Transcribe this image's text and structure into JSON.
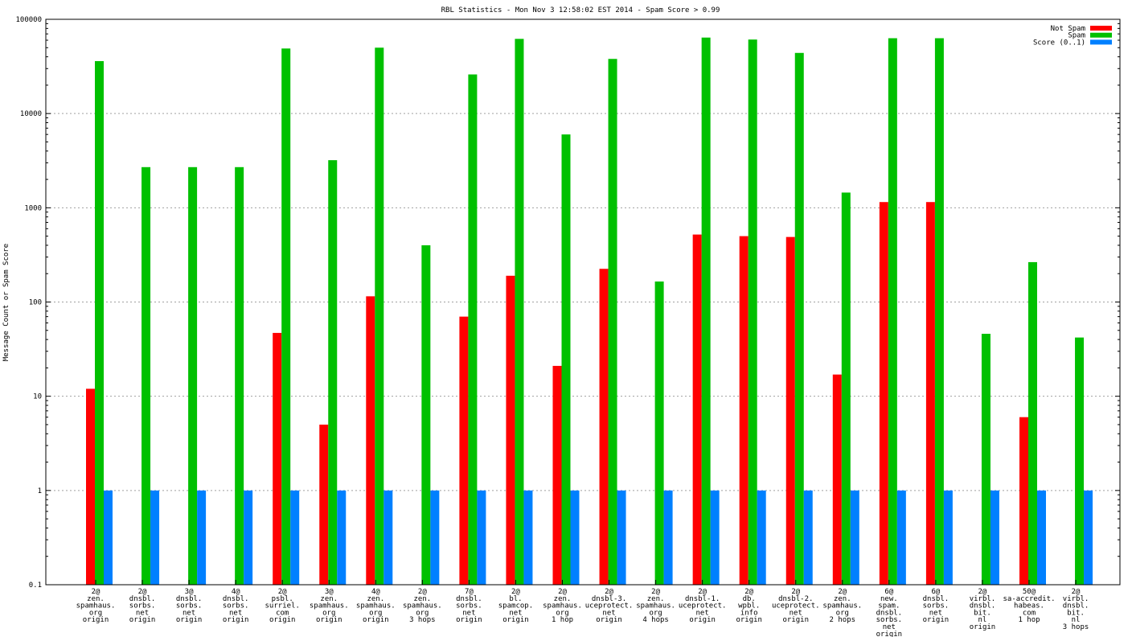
{
  "chart_data": {
    "type": "bar",
    "title": "RBL Statistics - Mon Nov  3 12:58:02 EST 2014 - Spam Score > 0.99",
    "ylabel": "Message Count or Spam Score",
    "xlabel": "",
    "yscale": "log",
    "ylim": [
      0.1,
      100000
    ],
    "yticks": [
      {
        "value": 0.1,
        "label": "0.1"
      },
      {
        "value": 1,
        "label": "1"
      },
      {
        "value": 10,
        "label": "10"
      },
      {
        "value": 100,
        "label": "100"
      },
      {
        "value": 1000,
        "label": "1000"
      },
      {
        "value": 10000,
        "label": "10000"
      },
      {
        "value": 100000,
        "label": "100000"
      }
    ],
    "grid": true,
    "legend_position": "top-right",
    "categories": [
      [
        "2@",
        "zen.",
        "spamhaus.",
        "org",
        "origin"
      ],
      [
        "2@",
        "dnsbl.",
        "sorbs.",
        "net",
        "origin"
      ],
      [
        "3@",
        "dnsbl.",
        "sorbs.",
        "net",
        "origin"
      ],
      [
        "4@",
        "dnsbl.",
        "sorbs.",
        "net",
        "origin"
      ],
      [
        "2@",
        "psbl.",
        "surriel.",
        "com",
        "origin"
      ],
      [
        "3@",
        "zen.",
        "spamhaus.",
        "org",
        "origin"
      ],
      [
        "4@",
        "zen.",
        "spamhaus.",
        "org",
        "origin"
      ],
      [
        "2@",
        "zen.",
        "spamhaus.",
        "org",
        "3 hops"
      ],
      [
        "7@",
        "dnsbl.",
        "sorbs.",
        "net",
        "origin"
      ],
      [
        "2@",
        "bl.",
        "spamcop.",
        "net",
        "origin"
      ],
      [
        "2@",
        "zen.",
        "spamhaus.",
        "org",
        "1 hop"
      ],
      [
        "2@",
        "dnsbl-3.",
        "uceprotect.",
        "net",
        "origin"
      ],
      [
        "2@",
        "zen.",
        "spamhaus.",
        "org",
        "4 hops"
      ],
      [
        "2@",
        "dnsbl-1.",
        "uceprotect.",
        "net",
        "origin"
      ],
      [
        "2@",
        "db.",
        "wpbl.",
        "info",
        "origin"
      ],
      [
        "2@",
        "dnsbl-2.",
        "uceprotect.",
        "net",
        "origin"
      ],
      [
        "2@",
        "zen.",
        "spamhaus.",
        "org",
        "2 hops"
      ],
      [
        "6@",
        "new.",
        "spam.",
        "dnsbl.",
        "sorbs.",
        "net",
        "origin"
      ],
      [
        "6@",
        "dnsbl.",
        "sorbs.",
        "net",
        "origin"
      ],
      [
        "2@",
        "virbl.",
        "dnsbl.",
        "bit.",
        "nl",
        "origin"
      ],
      [
        "50@",
        "sa-accredit.",
        "habeas.",
        "com",
        "1 hop"
      ],
      [
        "2@",
        "virbl.",
        "dnsbl.",
        "bit.",
        "nl",
        "3 hops"
      ]
    ],
    "series": [
      {
        "name": "Not Spam",
        "color": "#ff0000",
        "values": [
          12,
          null,
          null,
          null,
          47,
          5,
          115,
          null,
          70,
          190,
          21,
          225,
          null,
          520,
          500,
          490,
          17,
          1150,
          1150,
          null,
          6,
          null
        ]
      },
      {
        "name": "Spam",
        "color": "#00c000",
        "values": [
          36000,
          2700,
          2700,
          2700,
          49000,
          3200,
          50000,
          400,
          26000,
          62000,
          6000,
          38000,
          165,
          64000,
          61000,
          44000,
          1450,
          63000,
          63000,
          46,
          265,
          42
        ]
      },
      {
        "name": "Score (0..1)",
        "color": "#0080ff",
        "values": [
          1,
          1,
          1,
          1,
          1,
          1,
          1,
          1,
          1,
          1,
          1,
          1,
          1,
          1,
          1,
          1,
          1,
          1,
          1,
          1,
          1,
          1
        ]
      }
    ]
  }
}
